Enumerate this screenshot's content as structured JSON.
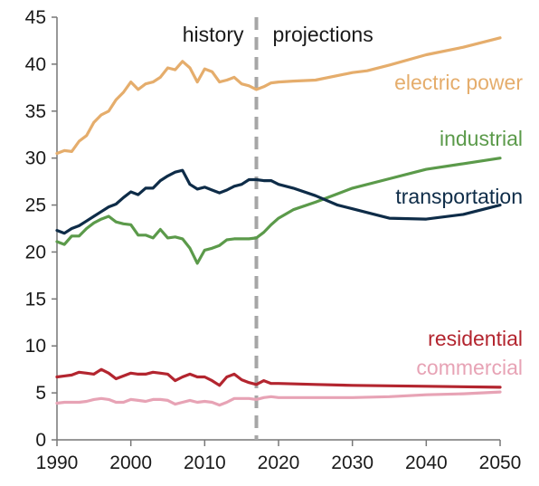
{
  "chart_data": {
    "type": "line",
    "title": "",
    "xlabel": "",
    "ylabel": "",
    "xlim": [
      1990,
      2050
    ],
    "ylim": [
      0,
      45
    ],
    "x_ticks": [
      "1990",
      "2000",
      "2010",
      "2020",
      "2030",
      "2040",
      "2050"
    ],
    "y_ticks": [
      "0",
      "5",
      "10",
      "15",
      "20",
      "25",
      "30",
      "35",
      "40",
      "45"
    ],
    "grid": false,
    "divider": {
      "x": 2017,
      "left_label": "history",
      "right_label": "projections"
    },
    "series": [
      {
        "name": "electric power",
        "color": "#E5AD6C",
        "x": [
          1990,
          1991,
          1992,
          1993,
          1994,
          1995,
          1996,
          1997,
          1998,
          1999,
          2000,
          2001,
          2002,
          2003,
          2004,
          2005,
          2006,
          2007,
          2008,
          2009,
          2010,
          2011,
          2012,
          2013,
          2014,
          2015,
          2016,
          2017,
          2018,
          2019,
          2020,
          2022,
          2025,
          2030,
          2032,
          2035,
          2040,
          2045,
          2050
        ],
        "y": [
          30.5,
          30.8,
          30.7,
          31.8,
          32.4,
          33.8,
          34.6,
          35.0,
          36.2,
          37.0,
          38.1,
          37.3,
          37.9,
          38.1,
          38.6,
          39.6,
          39.4,
          40.3,
          39.6,
          38.1,
          39.5,
          39.2,
          38.1,
          38.3,
          38.6,
          37.9,
          37.7,
          37.3,
          37.6,
          38.0,
          38.1,
          38.2,
          38.3,
          39.1,
          39.3,
          39.9,
          41.0,
          41.8,
          42.8
        ]
      },
      {
        "name": "industrial",
        "color": "#5B9A4A",
        "x": [
          1990,
          1991,
          1992,
          1993,
          1994,
          1995,
          1996,
          1997,
          1998,
          1999,
          2000,
          2001,
          2002,
          2003,
          2004,
          2005,
          2006,
          2007,
          2008,
          2009,
          2010,
          2011,
          2012,
          2013,
          2014,
          2015,
          2016,
          2017,
          2018,
          2019,
          2020,
          2022,
          2025,
          2028,
          2030,
          2035,
          2040,
          2045,
          2050
        ],
        "y": [
          21.1,
          20.8,
          21.7,
          21.7,
          22.5,
          23.1,
          23.5,
          23.8,
          23.2,
          23.0,
          22.9,
          21.8,
          21.8,
          21.5,
          22.4,
          21.5,
          21.6,
          21.4,
          20.4,
          18.8,
          20.2,
          20.4,
          20.7,
          21.3,
          21.4,
          21.4,
          21.4,
          21.5,
          22.1,
          22.9,
          23.6,
          24.5,
          25.3,
          26.2,
          26.8,
          27.8,
          28.8,
          29.4,
          30.0
        ]
      },
      {
        "name": "transportation",
        "color": "#0E2C48",
        "x": [
          1990,
          1991,
          1992,
          1993,
          1994,
          1995,
          1996,
          1997,
          1998,
          1999,
          2000,
          2001,
          2002,
          2003,
          2004,
          2005,
          2006,
          2007,
          2008,
          2009,
          2010,
          2011,
          2012,
          2013,
          2014,
          2015,
          2016,
          2017,
          2018,
          2019,
          2020,
          2022,
          2025,
          2028,
          2030,
          2033,
          2035,
          2040,
          2045,
          2050
        ],
        "y": [
          22.3,
          22.0,
          22.5,
          22.8,
          23.3,
          23.8,
          24.3,
          24.8,
          25.1,
          25.8,
          26.4,
          26.1,
          26.8,
          26.8,
          27.6,
          28.1,
          28.5,
          28.7,
          27.2,
          26.7,
          26.9,
          26.6,
          26.3,
          26.6,
          27.0,
          27.2,
          27.7,
          27.7,
          27.6,
          27.6,
          27.2,
          26.8,
          26.0,
          25.0,
          24.6,
          24.0,
          23.6,
          23.5,
          24.0,
          25.0
        ]
      },
      {
        "name": "residential",
        "color": "#B3252F",
        "x": [
          1990,
          1991,
          1992,
          1993,
          1994,
          1995,
          1996,
          1997,
          1998,
          1999,
          2000,
          2001,
          2002,
          2003,
          2004,
          2005,
          2006,
          2007,
          2008,
          2009,
          2010,
          2011,
          2012,
          2013,
          2014,
          2015,
          2016,
          2017,
          2018,
          2019,
          2020,
          2025,
          2030,
          2040,
          2050
        ],
        "y": [
          6.7,
          6.8,
          6.9,
          7.2,
          7.1,
          7.0,
          7.5,
          7.1,
          6.5,
          6.8,
          7.1,
          7.0,
          7.0,
          7.2,
          7.1,
          7.0,
          6.3,
          6.7,
          7.0,
          6.7,
          6.7,
          6.3,
          5.8,
          6.7,
          7.0,
          6.4,
          6.1,
          5.9,
          6.3,
          6.0,
          6.0,
          5.9,
          5.8,
          5.7,
          5.6
        ]
      },
      {
        "name": "commercial",
        "color": "#E7A3B5",
        "x": [
          1990,
          1991,
          1992,
          1993,
          1994,
          1995,
          1996,
          1997,
          1998,
          1999,
          2000,
          2001,
          2002,
          2003,
          2004,
          2005,
          2006,
          2007,
          2008,
          2009,
          2010,
          2011,
          2012,
          2013,
          2014,
          2015,
          2016,
          2017,
          2018,
          2019,
          2020,
          2025,
          2030,
          2035,
          2040,
          2045,
          2050
        ],
        "y": [
          3.9,
          4.0,
          4.0,
          4.0,
          4.1,
          4.3,
          4.4,
          4.3,
          4.0,
          4.0,
          4.3,
          4.2,
          4.1,
          4.3,
          4.3,
          4.2,
          3.8,
          4.0,
          4.2,
          4.0,
          4.1,
          4.0,
          3.7,
          4.0,
          4.4,
          4.4,
          4.4,
          4.3,
          4.5,
          4.6,
          4.5,
          4.5,
          4.5,
          4.6,
          4.8,
          4.9,
          5.1
        ]
      }
    ]
  }
}
